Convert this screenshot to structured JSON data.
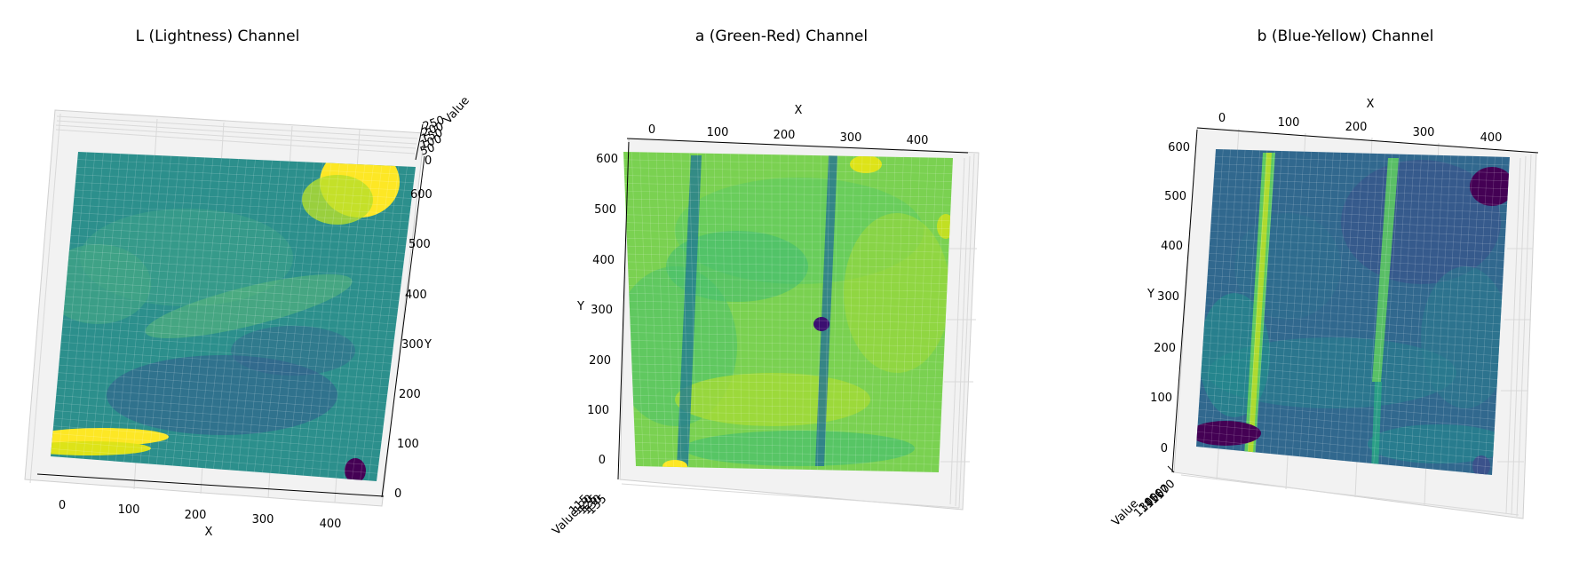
{
  "chart_data": [
    {
      "type": "surface",
      "title": "L (Lightness) Channel",
      "xlabel": "X",
      "ylabel": "Y",
      "zlabel": "Value",
      "x_ticks": [
        "0",
        "100",
        "200",
        "300",
        "400"
      ],
      "y_ticks": [
        "0",
        "100",
        "200",
        "300",
        "400",
        "500",
        "600"
      ],
      "z_ticks": [
        "0",
        "50",
        "100",
        "150",
        "200",
        "250"
      ],
      "xlim": [
        0,
        440
      ],
      "ylim": [
        0,
        620
      ],
      "colormap": "viridis",
      "grid": true
    },
    {
      "type": "surface",
      "title": "a (Green-Red) Channel",
      "xlabel": "X",
      "ylabel": "Y",
      "zlabel": "Value",
      "x_ticks": [
        "0",
        "100",
        "200",
        "300",
        "400"
      ],
      "y_ticks": [
        "0",
        "100",
        "200",
        "300",
        "400",
        "500",
        "600"
      ],
      "z_ticks": [
        "115",
        "120",
        "125",
        "130",
        "135"
      ],
      "xlim": [
        0,
        440
      ],
      "ylim": [
        0,
        620
      ],
      "colormap": "viridis",
      "grid": true
    },
    {
      "type": "surface",
      "title": "b (Blue-Yellow) Channel",
      "xlabel": "X",
      "ylabel": "Y",
      "zlabel": "Value",
      "x_ticks": [
        "0",
        "100",
        "200",
        "300",
        "400"
      ],
      "y_ticks": [
        "0",
        "100",
        "200",
        "300",
        "400",
        "500",
        "600"
      ],
      "z_ticks": [
        "130",
        "140",
        "150",
        "160",
        "170"
      ],
      "xlim": [
        0,
        440
      ],
      "ylim": [
        0,
        620
      ],
      "colormap": "viridis",
      "grid": true
    }
  ]
}
